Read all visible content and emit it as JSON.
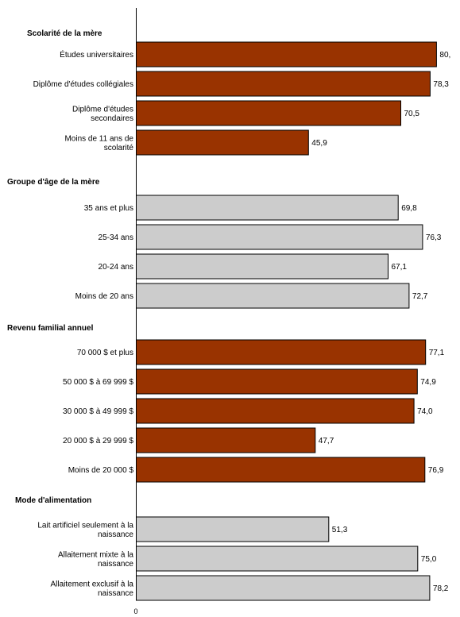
{
  "chart_data": {
    "type": "bar",
    "orientation": "horizontal",
    "xlim": [
      0,
      81.5
    ],
    "x_ticks": [
      "0"
    ],
    "grid": false,
    "colors": {
      "dark": "#993300",
      "light": "#cccccc",
      "stroke": "#000000"
    },
    "groups": [
      {
        "name": "Scolarité de la mère",
        "color": "dark",
        "items": [
          {
            "label": [
              "Études universitaires"
            ],
            "value": 80.0,
            "value_label": "80,"
          },
          {
            "label": [
              "Diplôme d'études collégiales"
            ],
            "value": 78.3,
            "value_label": "78,3"
          },
          {
            "label": [
              "Diplôme d'études",
              "secondaires"
            ],
            "value": 70.5,
            "value_label": "70,5"
          },
          {
            "label": [
              "Moins de 11 ans de",
              "scolarité"
            ],
            "value": 45.9,
            "value_label": "45,9"
          }
        ]
      },
      {
        "name": "Groupe d'âge de la mère",
        "color": "light",
        "items": [
          {
            "label": [
              "35 ans et plus"
            ],
            "value": 69.8,
            "value_label": "69,8"
          },
          {
            "label": [
              "25-34 ans"
            ],
            "value": 76.3,
            "value_label": "76,3"
          },
          {
            "label": [
              "20-24 ans"
            ],
            "value": 67.1,
            "value_label": "67,1"
          },
          {
            "label": [
              "Moins de 20 ans"
            ],
            "value": 72.7,
            "value_label": "72,7"
          }
        ]
      },
      {
        "name": "Revenu familial annuel",
        "color": "dark",
        "items": [
          {
            "label": [
              "70 000 $ et plus"
            ],
            "value": 77.1,
            "value_label": "77,1"
          },
          {
            "label": [
              "50 000 $ à 69 999 $"
            ],
            "value": 74.9,
            "value_label": "74,9"
          },
          {
            "label": [
              "30 000 $ à 49 999 $"
            ],
            "value": 74.0,
            "value_label": "74,0"
          },
          {
            "label": [
              "20 000 $ à 29 999 $"
            ],
            "value": 47.7,
            "value_label": "47,7"
          },
          {
            "label": [
              "Moins de 20 000 $"
            ],
            "value": 76.9,
            "value_label": "76,9"
          }
        ]
      },
      {
        "name": "Mode d'alimentation",
        "color": "light",
        "items": [
          {
            "label": [
              "Lait artificiel seulement à la",
              "naissance"
            ],
            "value": 51.3,
            "value_label": "51,3"
          },
          {
            "label": [
              "Allaitement mixte à la",
              "naissance"
            ],
            "value": 75.0,
            "value_label": "75,0"
          },
          {
            "label": [
              "Allaitement exclusif à la",
              "naissance"
            ],
            "value": 78.2,
            "value_label": "78,2"
          }
        ]
      }
    ]
  }
}
